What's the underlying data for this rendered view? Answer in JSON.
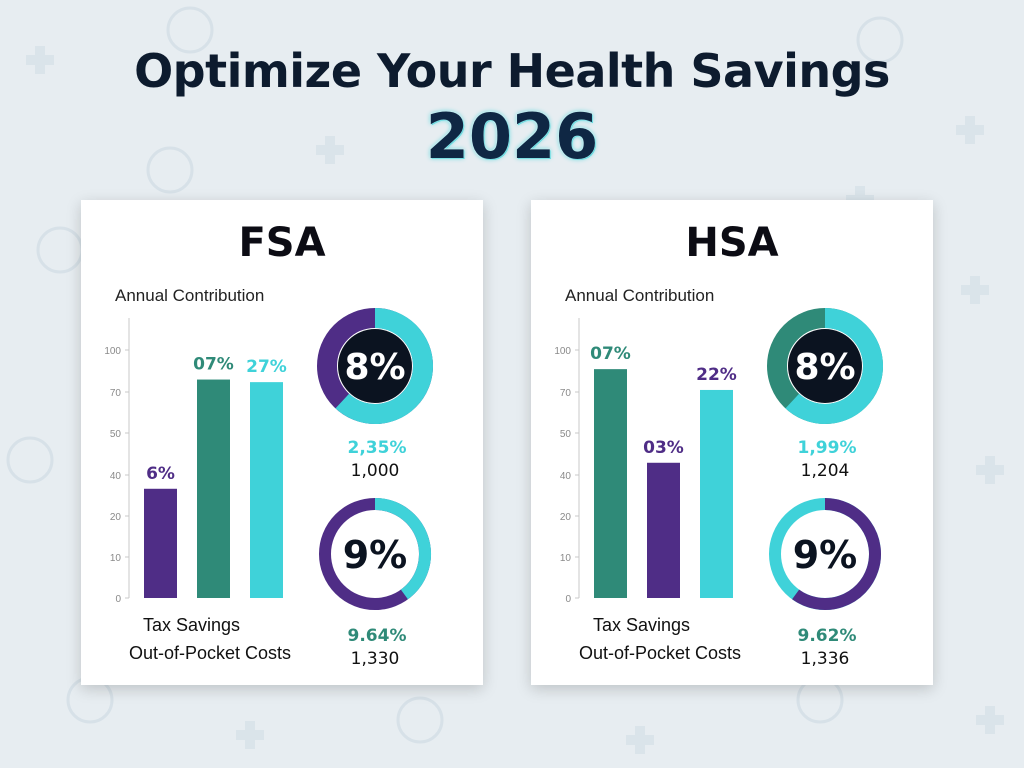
{
  "page": {
    "title": "Optimize Your Health Savings",
    "year": "2026"
  },
  "colors": {
    "purple": "#4f2d86",
    "teal": "#2f8a78",
    "cyan": "#3fd2d9",
    "dark": "#0b1320"
  },
  "chart_data": [
    {
      "type": "bar",
      "title": "FSA",
      "subtitle": "Annual Contribution",
      "ylim": [
        0,
        100
      ],
      "yticks": [
        "0",
        "10",
        "20",
        "40",
        "50",
        "70",
        "100"
      ],
      "x_labels": [
        "Tax Savings",
        "Out-of-Pocket Costs"
      ],
      "bars": [
        {
          "value": 42,
          "label": "6%",
          "color": "#4f2d86",
          "label_color": "#4f2d86"
        },
        {
          "value": 84,
          "label": "07%",
          "color": "#2f8a78",
          "label_color": "#2f8a78"
        },
        {
          "value": 83,
          "label": "27%",
          "color": "#3fd2d9",
          "label_color": "#3fd2d9"
        }
      ],
      "donuts": [
        {
          "center": "8%",
          "pct_label": "2,35%",
          "value": "1,000",
          "fill": 0.62,
          "primary_color": "#3fd2d9",
          "secondary_color": "#4f2d86",
          "label_color": "#3fd2d9",
          "style": "solid"
        },
        {
          "center": "9%",
          "pct_label": "9.64%",
          "value": "1,330",
          "fill": 0.4,
          "primary_color": "#3fd2d9",
          "secondary_color": "#4f2d86",
          "label_color": "#2f8a78",
          "style": "ring"
        }
      ]
    },
    {
      "type": "bar",
      "title": "HSA",
      "subtitle": "Annual Contribution",
      "ylim": [
        0,
        100
      ],
      "yticks": [
        "0",
        "10",
        "20",
        "40",
        "50",
        "70",
        "100"
      ],
      "x_labels": [
        "Tax Savings",
        "Out-of-Pocket Costs"
      ],
      "bars": [
        {
          "value": 88,
          "label": "07%",
          "color": "#2f8a78",
          "label_color": "#2f8a78"
        },
        {
          "value": 52,
          "label": "03%",
          "color": "#4f2d86",
          "label_color": "#4f2d86"
        },
        {
          "value": 80,
          "label": "22%",
          "color": "#3fd2d9",
          "label_color": "#4f2d86"
        }
      ],
      "donuts": [
        {
          "center": "8%",
          "pct_label": "1,99%",
          "value": "1,204",
          "fill": 0.62,
          "primary_color": "#3fd2d9",
          "secondary_color": "#2f8a78",
          "label_color": "#3fd2d9",
          "style": "solid"
        },
        {
          "center": "9%",
          "pct_label": "9.62%",
          "value": "1,336",
          "fill": 0.6,
          "primary_color": "#4f2d86",
          "secondary_color": "#3fd2d9",
          "label_color": "#2f8a78",
          "style": "ring"
        }
      ]
    }
  ]
}
